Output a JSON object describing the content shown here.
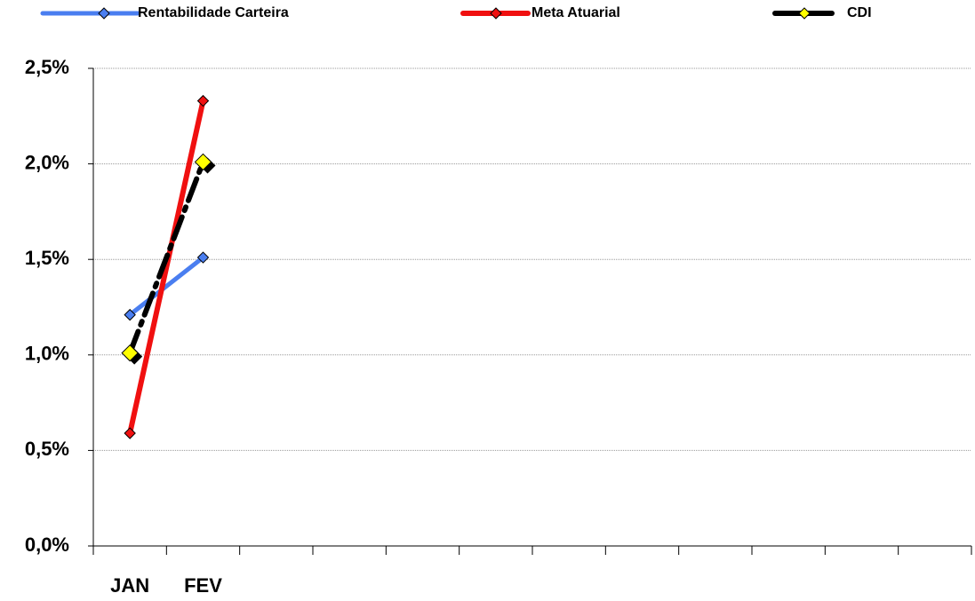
{
  "chart_data": {
    "type": "line",
    "categories": [
      "JAN",
      "FEV",
      null,
      null,
      null,
      null,
      null,
      null,
      null,
      null,
      null,
      null
    ],
    "series": [
      {
        "name": "Rentabilidade Carteira",
        "color": "#4a7ef0",
        "marker_color": "#4a7ef0",
        "values": [
          1.21,
          1.51,
          null,
          null,
          null,
          null,
          null,
          null,
          null,
          null,
          null,
          null
        ]
      },
      {
        "name": "Meta Atuarial",
        "color": "#f01010",
        "marker_color": "#f01010",
        "values": [
          0.59,
          2.33,
          null,
          null,
          null,
          null,
          null,
          null,
          null,
          null,
          null,
          null
        ]
      },
      {
        "name": "CDI",
        "color": "#000000",
        "marker_color": "#ffff00",
        "values": [
          1.01,
          2.01,
          null,
          null,
          null,
          null,
          null,
          null,
          null,
          null,
          null,
          null
        ]
      }
    ],
    "ylim": [
      0,
      2.5
    ],
    "yticks": [
      {
        "value": 0,
        "label": "0,0%"
      },
      {
        "value": 0.5,
        "label": "0,5%"
      },
      {
        "value": 1,
        "label": "1,0%"
      },
      {
        "value": 1.5,
        "label": "1,5%"
      },
      {
        "value": 2,
        "label": "2,0%"
      },
      {
        "value": 2.5,
        "label": "2,5%"
      }
    ],
    "grid": true,
    "legend": "top"
  }
}
